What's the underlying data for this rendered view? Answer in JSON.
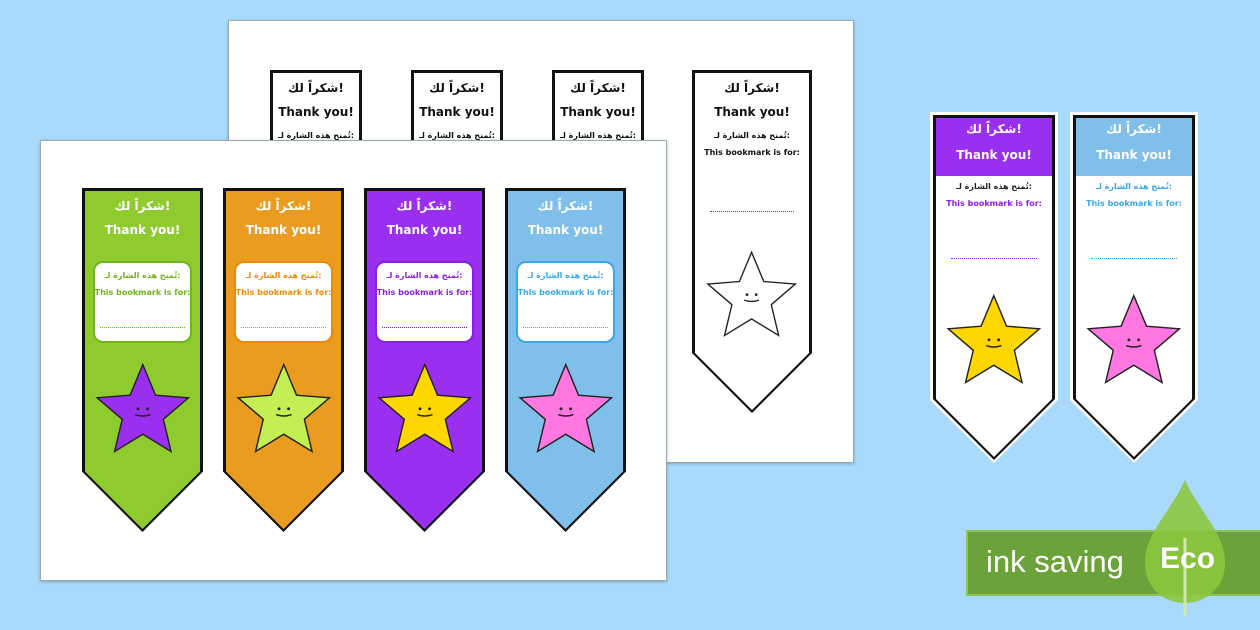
{
  "bookmark_text": {
    "arabic_title": "شكراً لك!",
    "english_title": "Thank you!",
    "arabic_for": "تُمنح هذه الشارة لـ:",
    "english_for": "This bookmark is for:"
  },
  "back_sheet": {
    "bookmarks": [
      {
        "color": "#ffffff",
        "text": "#111111",
        "star": "#ffffff"
      },
      {
        "color": "#ffffff",
        "text": "#111111",
        "star": "#ffffff"
      },
      {
        "color": "#ffffff",
        "text": "#111111",
        "star": "#ffffff"
      },
      {
        "color": "#ffffff",
        "text": "#111111",
        "star": "#ffffff"
      }
    ]
  },
  "front_sheet": {
    "bookmarks": [
      {
        "color": "#8fcb2f",
        "text": "#6fb51c",
        "star": "#9b2ff0"
      },
      {
        "color": "#e99c1f",
        "text": "#e98a0a",
        "star": "#c3ef55"
      },
      {
        "color": "#9b2ff0",
        "text": "#8b1fe0",
        "star": "#ffd700"
      },
      {
        "color": "#7fbfea",
        "text": "#3aa7e8",
        "star": "#ff77e0"
      }
    ]
  },
  "ink_saving_bookmarks": [
    {
      "color": "#9b2ff0",
      "text": "#8b1fe0",
      "star": "#ffd700"
    },
    {
      "color": "#7fbfea",
      "text": "#3aa7e8",
      "star": "#ff77e0"
    }
  ],
  "badge": {
    "label": "ink saving",
    "eco": "Eco",
    "color": "#6ba33a"
  }
}
